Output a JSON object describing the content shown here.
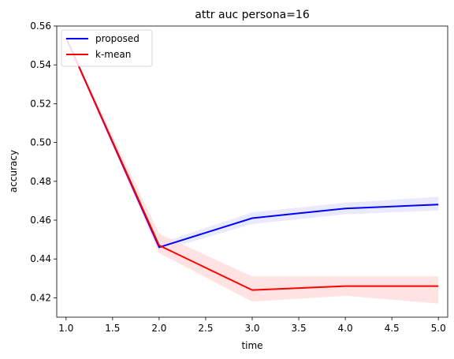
{
  "chart_data": {
    "type": "line",
    "title": "attr auc persona=16",
    "xlabel": "time",
    "ylabel": "accuracy",
    "x": [
      1.0,
      2.0,
      3.0,
      4.0,
      5.0
    ],
    "xlim": [
      0.9,
      5.1
    ],
    "ylim": [
      0.41,
      0.56
    ],
    "xticks": [
      "1.0",
      "1.5",
      "2.0",
      "2.5",
      "3.0",
      "3.5",
      "4.0",
      "4.5",
      "5.0"
    ],
    "yticks": [
      "0.42",
      "0.44",
      "0.46",
      "0.48",
      "0.50",
      "0.52",
      "0.54",
      "0.56"
    ],
    "legend_position": "upper-left",
    "grid": false,
    "series": [
      {
        "name": "proposed",
        "color": "#0000ff",
        "band_color": "#e6e6ff",
        "values": [
          0.554,
          0.446,
          0.461,
          0.466,
          0.468
        ],
        "lower": [
          0.554,
          0.444,
          0.458,
          0.463,
          0.465
        ],
        "upper": [
          0.554,
          0.448,
          0.464,
          0.469,
          0.472
        ]
      },
      {
        "name": "k-mean",
        "color": "#ff0000",
        "band_color": "#ffdede",
        "values": [
          0.554,
          0.447,
          0.424,
          0.426,
          0.426
        ],
        "lower": [
          0.554,
          0.443,
          0.418,
          0.421,
          0.417
        ],
        "upper": [
          0.554,
          0.453,
          0.431,
          0.431,
          0.431
        ]
      }
    ]
  }
}
